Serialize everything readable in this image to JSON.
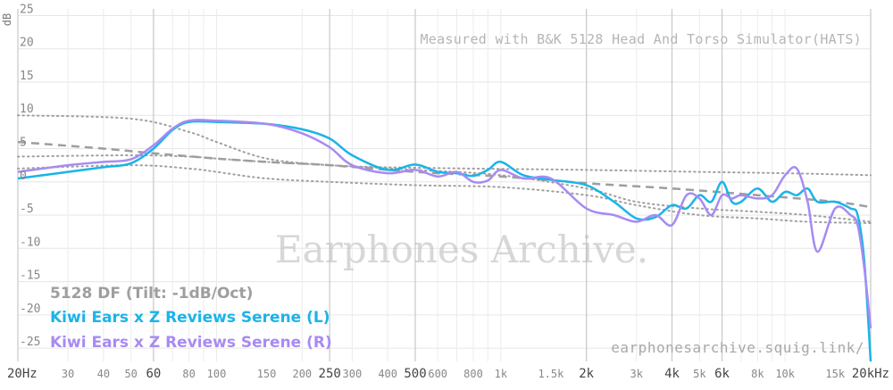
{
  "chart_data": {
    "type": "line",
    "ylabel": "dB",
    "xlim": [
      20,
      20000
    ],
    "ylim": [
      -27,
      26
    ],
    "x_scale": "log",
    "grid": true,
    "legend_placement": "bottom-left",
    "y_ticks": [
      25,
      20,
      15,
      10,
      5,
      0,
      -5,
      -10,
      -15,
      -20,
      -25
    ],
    "x_ticks": [
      {
        "value": 20,
        "label": "20Hz",
        "major": true
      },
      {
        "value": 30,
        "label": "30",
        "major": false
      },
      {
        "value": 40,
        "label": "40",
        "major": false
      },
      {
        "value": 50,
        "label": "50",
        "major": false
      },
      {
        "value": 60,
        "label": "60",
        "major": true
      },
      {
        "value": 80,
        "label": "80",
        "major": false
      },
      {
        "value": 100,
        "label": "100",
        "major": false
      },
      {
        "value": 150,
        "label": "150",
        "major": false
      },
      {
        "value": 200,
        "label": "200",
        "major": false
      },
      {
        "value": 250,
        "label": "250",
        "major": true
      },
      {
        "value": 300,
        "label": "300",
        "major": false
      },
      {
        "value": 400,
        "label": "400",
        "major": false
      },
      {
        "value": 500,
        "label": "500",
        "major": true
      },
      {
        "value": 600,
        "label": "600",
        "major": false
      },
      {
        "value": 800,
        "label": "800",
        "major": false
      },
      {
        "value": 1000,
        "label": "1k",
        "major": false
      },
      {
        "value": 1500,
        "label": "1.5k",
        "major": false
      },
      {
        "value": 2000,
        "label": "2k",
        "major": true
      },
      {
        "value": 3000,
        "label": "3k",
        "major": false
      },
      {
        "value": 4000,
        "label": "4k",
        "major": true
      },
      {
        "value": 5000,
        "label": "5k",
        "major": false
      },
      {
        "value": 6000,
        "label": "6k",
        "major": true
      },
      {
        "value": 8000,
        "label": "8k",
        "major": false
      },
      {
        "value": 10000,
        "label": "10k",
        "major": false
      },
      {
        "value": 15000,
        "label": "15k",
        "major": false
      },
      {
        "value": 20000,
        "label": "20kHz",
        "major": true
      }
    ],
    "annotations": {
      "note": "Measured with B&K 5128 Head And Torso Simulator(HATS)",
      "watermark": "Earphones Archive.",
      "url": "earphonesarchive.squig.link/"
    },
    "series": [
      {
        "name": "5128 DF (Tilt: -1dB/Oct)",
        "color": "#9e9e9e",
        "style": "dashed",
        "x": [
          20,
          40,
          60,
          100,
          150,
          250,
          500,
          1000,
          2000,
          4000,
          8000,
          15000,
          20000
        ],
        "y": [
          6.0,
          5.0,
          4.3,
          3.5,
          3.0,
          2.5,
          1.5,
          0.8,
          -0.2,
          -1.0,
          -2.0,
          -3.0,
          -3.8
        ]
      },
      {
        "name": "Kiwi Ears x Z Reviews Serene (L)",
        "color": "#1ab4e8",
        "style": "solid",
        "x": [
          20,
          30,
          40,
          50,
          60,
          70,
          80,
          100,
          150,
          200,
          250,
          300,
          400,
          500,
          600,
          700,
          800,
          900,
          1000,
          1200,
          1500,
          2000,
          2500,
          3000,
          3500,
          4000,
          4500,
          5000,
          5500,
          6000,
          6500,
          7000,
          8000,
          9000,
          10000,
          11000,
          12000,
          13000,
          15000,
          17000,
          18000,
          19000,
          20000
        ],
        "y": [
          0.5,
          1.5,
          2.2,
          2.8,
          5.0,
          7.8,
          9.0,
          9.0,
          8.7,
          7.9,
          6.5,
          4.0,
          1.8,
          2.6,
          1.5,
          1.3,
          0.9,
          1.8,
          3.0,
          1.0,
          0.3,
          -0.5,
          -3.0,
          -5.5,
          -5.3,
          -3.5,
          -4.0,
          -2.0,
          -3.0,
          0.0,
          -3.0,
          -3.0,
          -1.0,
          -3.0,
          -1.5,
          -2.0,
          -1.0,
          -3.0,
          -3.0,
          -4.0,
          -5.0,
          -12.0,
          -27.0
        ]
      },
      {
        "name": "Kiwi Ears x Z Reviews Serene (R)",
        "color": "#a78bf2",
        "style": "solid",
        "x": [
          20,
          30,
          40,
          50,
          60,
          70,
          80,
          100,
          150,
          200,
          250,
          300,
          400,
          500,
          600,
          700,
          800,
          900,
          1000,
          1200,
          1500,
          2000,
          2500,
          3000,
          3500,
          4000,
          4500,
          5000,
          5500,
          6000,
          6500,
          7000,
          8000,
          9000,
          10000,
          11000,
          12000,
          13000,
          15000,
          17000,
          18000,
          19000,
          20000
        ],
        "y": [
          1.5,
          2.5,
          3.0,
          3.4,
          5.5,
          8.0,
          9.2,
          9.2,
          8.7,
          7.3,
          5.2,
          2.5,
          1.3,
          1.8,
          0.8,
          1.5,
          0.0,
          0.2,
          1.8,
          0.5,
          0.5,
          -4.0,
          -5.0,
          -6.0,
          -5.0,
          -6.5,
          -2.0,
          -2.5,
          -5.0,
          -2.0,
          -2.5,
          -2.0,
          -2.5,
          -2.0,
          1.0,
          2.0,
          -3.0,
          -10.5,
          -4.0,
          -5.0,
          -6.5,
          -13.0,
          -22.0
        ]
      }
    ],
    "reference_curves": [
      {
        "name": "upper-dotted",
        "color": "#a0a0a0",
        "x": [
          20,
          50,
          80,
          100,
          150,
          250,
          400,
          800,
          2000,
          5000,
          10000,
          20000
        ],
        "y": [
          10.0,
          9.5,
          7.5,
          6.0,
          3.5,
          2.5,
          2.2,
          2.0,
          1.8,
          1.5,
          1.3,
          1.0
        ]
      },
      {
        "name": "middle-dotted",
        "color": "#a0a0a0",
        "x": [
          20,
          50,
          80,
          100,
          150,
          250,
          500,
          1000,
          2000,
          3000,
          5000,
          8000,
          12000,
          20000
        ],
        "y": [
          3.8,
          4.0,
          3.8,
          3.5,
          3.0,
          2.5,
          1.8,
          1.0,
          -1.0,
          -3.0,
          -4.0,
          -4.5,
          -5.0,
          -6.0
        ]
      },
      {
        "name": "lower-dotted",
        "color": "#a0a0a0",
        "x": [
          20,
          50,
          80,
          100,
          150,
          250,
          500,
          1000,
          2000,
          3000,
          5000,
          8000,
          12000,
          20000
        ],
        "y": [
          2.0,
          2.5,
          2.0,
          1.5,
          0.5,
          0.0,
          -0.5,
          -0.8,
          -2.0,
          -3.5,
          -5.0,
          -5.5,
          -6.0,
          -6.2
        ]
      }
    ]
  }
}
